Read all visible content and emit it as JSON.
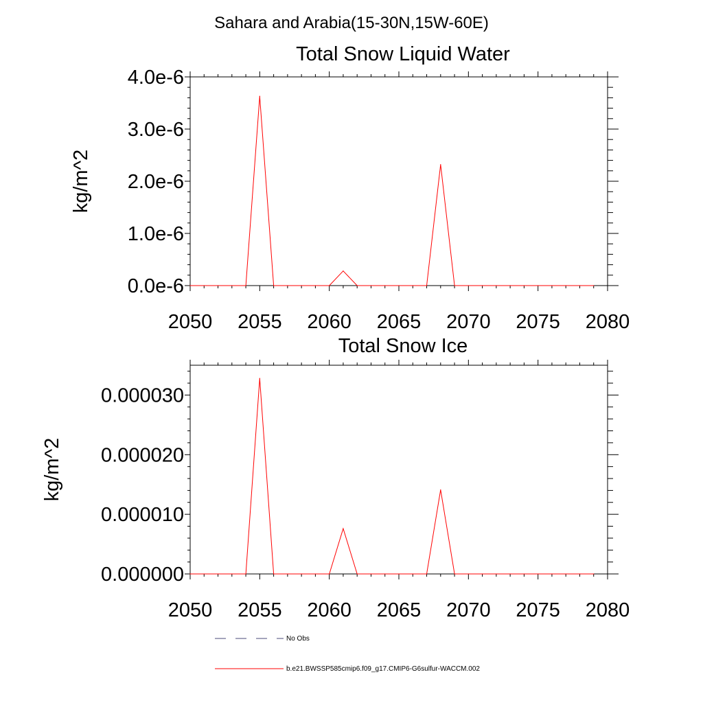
{
  "page_title": "Sahara and Arabia(15-30N,15W-60E)",
  "legend": {
    "items": [
      {
        "label": "No Obs",
        "color": "#4a4a7a",
        "dashed": true
      },
      {
        "label": "b.e21.BWSSP585cmip6.f09_g17.CMIP6-G6sulfur-WACCM.002",
        "color": "#ff0000",
        "dashed": false
      }
    ]
  },
  "chart_data": [
    {
      "type": "line",
      "title": "Total Snow Liquid Water",
      "xlabel": "",
      "ylabel": "kg/m^2",
      "xlim": [
        2050,
        2080
      ],
      "ylim": [
        0,
        4e-06
      ],
      "x_ticks": [
        2050,
        2055,
        2060,
        2065,
        2070,
        2075,
        2080
      ],
      "x_tick_labels": [
        "2050",
        "2055",
        "2060",
        "2065",
        "2070",
        "2075",
        "2080"
      ],
      "y_ticks": [
        0,
        1e-06,
        2e-06,
        3e-06,
        4e-06
      ],
      "y_tick_labels": [
        "0.0e-6",
        "1.0e-6",
        "2.0e-6",
        "3.0e-6",
        "4.0e-6"
      ],
      "x": [
        2050,
        2051,
        2052,
        2053,
        2054,
        2055,
        2056,
        2057,
        2058,
        2059,
        2060,
        2061,
        2062,
        2063,
        2064,
        2065,
        2066,
        2067,
        2068,
        2069,
        2070,
        2071,
        2072,
        2073,
        2074,
        2075,
        2076,
        2077,
        2078,
        2079
      ],
      "series": [
        {
          "name": "b.e21.BWSSP585cmip6.f09_g17.CMIP6-G6sulfur-WACCM.002",
          "color": "#ff0000",
          "values": [
            0,
            0,
            0,
            0,
            0,
            3.63e-06,
            0,
            0,
            0,
            0,
            0,
            2.8e-07,
            0,
            0,
            0,
            0,
            0,
            0,
            2.32e-06,
            0,
            0,
            0,
            0,
            0,
            0,
            0,
            0,
            0,
            0,
            0
          ]
        }
      ]
    },
    {
      "type": "line",
      "title": "Total Snow Ice",
      "xlabel": "",
      "ylabel": "kg/m^2",
      "xlim": [
        2050,
        2080
      ],
      "ylim": [
        0,
        3.5e-05
      ],
      "x_ticks": [
        2050,
        2055,
        2060,
        2065,
        2070,
        2075,
        2080
      ],
      "x_tick_labels": [
        "2050",
        "2055",
        "2060",
        "2065",
        "2070",
        "2075",
        "2080"
      ],
      "y_ticks": [
        0,
        1e-05,
        2e-05,
        3e-05
      ],
      "y_tick_labels": [
        "0.000000",
        "0.000010",
        "0.000020",
        "0.000030"
      ],
      "x": [
        2050,
        2051,
        2052,
        2053,
        2054,
        2055,
        2056,
        2057,
        2058,
        2059,
        2060,
        2061,
        2062,
        2063,
        2064,
        2065,
        2066,
        2067,
        2068,
        2069,
        2070,
        2071,
        2072,
        2073,
        2074,
        2075,
        2076,
        2077,
        2078,
        2079
      ],
      "series": [
        {
          "name": "b.e21.BWSSP585cmip6.f09_g17.CMIP6-G6sulfur-WACCM.002",
          "color": "#ff0000",
          "values": [
            0,
            0,
            0,
            0,
            0,
            3.28e-05,
            0,
            0,
            0,
            0,
            0,
            7.6e-06,
            0,
            0,
            0,
            0,
            0,
            0,
            1.41e-05,
            0,
            0,
            0,
            0,
            0,
            0,
            0,
            0,
            0,
            0,
            0
          ]
        }
      ]
    }
  ]
}
